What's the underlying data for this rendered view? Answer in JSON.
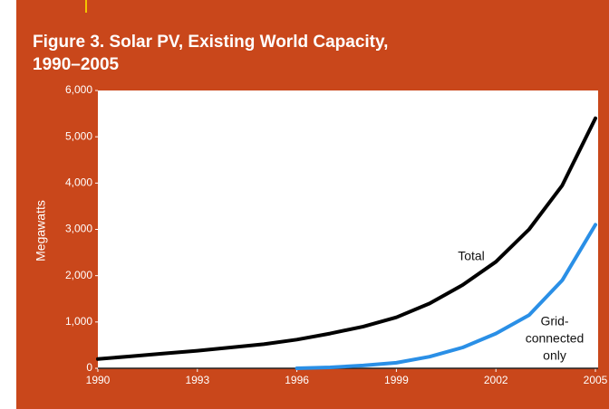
{
  "chart_data": {
    "type": "line",
    "title": [
      "Figure 3. Solar PV, Existing World Capacity,",
      "1990–2005"
    ],
    "ylabel": "Megawatts",
    "x": [
      1990,
      1991,
      1992,
      1993,
      1994,
      1995,
      1996,
      1997,
      1998,
      1999,
      2000,
      2001,
      2002,
      2003,
      2004,
      2005
    ],
    "series": [
      {
        "color": "#000000",
        "values": [
          200,
          260,
          320,
          380,
          450,
          520,
          620,
          750,
          900,
          1100,
          1400,
          1800,
          2300,
          3000,
          3950,
          5400
        ]
      },
      {
        "color": "#2a8fe6",
        "values": [
          null,
          null,
          null,
          null,
          null,
          null,
          0,
          20,
          60,
          120,
          250,
          450,
          750,
          1150,
          1900,
          3100
        ]
      }
    ],
    "annotations": [
      {
        "text": "Total"
      },
      {
        "lines": [
          "Grid-",
          "connected",
          "only"
        ]
      }
    ],
    "xlim": [
      1990,
      2005
    ],
    "xticks": [
      1990,
      1993,
      1996,
      1999,
      2002,
      2005
    ],
    "ylim": [
      0,
      6000
    ],
    "yticks": [
      0,
      {
        "value": 1000,
        "label": "1,000"
      },
      {
        "value": 2000,
        "label": "2,000"
      },
      {
        "value": 3000,
        "label": "3,000"
      },
      {
        "value": 4000,
        "label": "4,000"
      },
      {
        "value": 5000,
        "label": "5,000"
      },
      {
        "value": 6000,
        "label": "6,000"
      }
    ]
  }
}
